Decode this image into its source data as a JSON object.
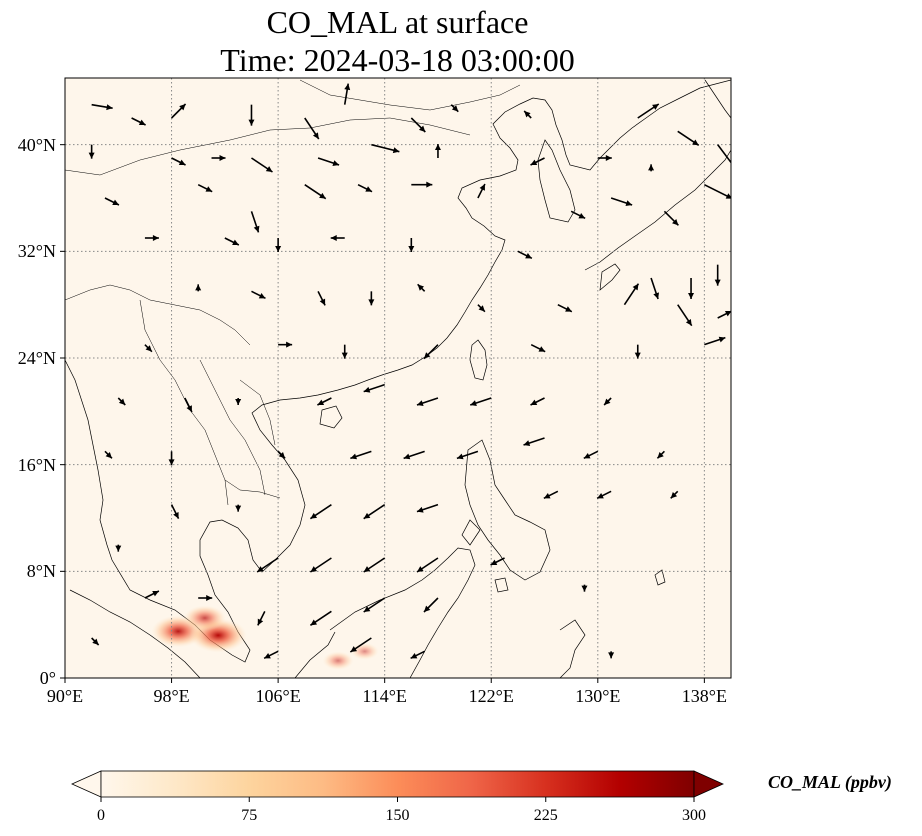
{
  "title_line1": "CO_MAL at surface",
  "title_line2": "Time: 2024-03-18 03:00:00",
  "map": {
    "lon_range": [
      90,
      140
    ],
    "lat_range": [
      0,
      45
    ],
    "lat_ticks": [
      {
        "value": 0,
        "label": "0°"
      },
      {
        "value": 8,
        "label": "8°N"
      },
      {
        "value": 16,
        "label": "16°N"
      },
      {
        "value": 24,
        "label": "24°N"
      },
      {
        "value": 32,
        "label": "32°N"
      },
      {
        "value": 40,
        "label": "40°N"
      }
    ],
    "lon_ticks": [
      {
        "value": 90,
        "label": "90°E"
      },
      {
        "value": 98,
        "label": "98°E"
      },
      {
        "value": 106,
        "label": "106°E"
      },
      {
        "value": 114,
        "label": "114°E"
      },
      {
        "value": 122,
        "label": "122°E"
      },
      {
        "value": 130,
        "label": "130°E"
      },
      {
        "value": 138,
        "label": "138°E"
      }
    ],
    "background_color": "#fef6eb",
    "gridlines": "dotted"
  },
  "colorbar": {
    "label": "CO_MAL (ppbv)",
    "colormap": "OrRd",
    "range": [
      0,
      300
    ],
    "extend": "both",
    "ticks": [
      {
        "value": 0,
        "label": "0"
      },
      {
        "value": 75,
        "label": "75"
      },
      {
        "value": 150,
        "label": "150"
      },
      {
        "value": 225,
        "label": "225"
      },
      {
        "value": 300,
        "label": "300"
      }
    ],
    "stops": [
      "#fff7ec",
      "#fee8c8",
      "#fdd49e",
      "#fdbb84",
      "#fc8d59",
      "#ef6548",
      "#d7301f",
      "#b30000",
      "#7f0000"
    ]
  },
  "hotspots": [
    {
      "lon": 98.5,
      "lat": 3.5,
      "value": 180
    },
    {
      "lon": 101.5,
      "lat": 3.2,
      "value": 200
    },
    {
      "lon": 100.5,
      "lat": 4.5,
      "value": 120
    },
    {
      "lon": 110.5,
      "lat": 1.3,
      "value": 60
    },
    {
      "lon": 112.5,
      "lat": 2.0,
      "value": 45
    }
  ],
  "wind_arrows": [
    {
      "lon": 92,
      "lat": 43,
      "u": 3,
      "v": -0.5
    },
    {
      "lon": 95,
      "lat": 42,
      "u": 2,
      "v": -1
    },
    {
      "lon": 98,
      "lat": 42,
      "u": 2,
      "v": 2
    },
    {
      "lon": 104,
      "lat": 43,
      "u": 0,
      "v": -3
    },
    {
      "lon": 108,
      "lat": 42,
      "u": 2,
      "v": -3
    },
    {
      "lon": 111,
      "lat": 43,
      "u": 0.5,
      "v": 3
    },
    {
      "lon": 116,
      "lat": 42,
      "u": 2,
      "v": -2
    },
    {
      "lon": 119,
      "lat": 43,
      "u": 1,
      "v": -1
    },
    {
      "lon": 125,
      "lat": 42,
      "u": -1,
      "v": 1
    },
    {
      "lon": 133,
      "lat": 42,
      "u": 3,
      "v": 2
    },
    {
      "lon": 136,
      "lat": 41,
      "u": 3,
      "v": -2
    },
    {
      "lon": 139,
      "lat": 40,
      "u": 3,
      "v": -4
    },
    {
      "lon": 92,
      "lat": 40,
      "u": 0,
      "v": -2
    },
    {
      "lon": 98,
      "lat": 39,
      "u": 2,
      "v": -1
    },
    {
      "lon": 101,
      "lat": 39,
      "u": 2,
      "v": 0
    },
    {
      "lon": 104,
      "lat": 39,
      "u": 3,
      "v": -2
    },
    {
      "lon": 109,
      "lat": 39,
      "u": 3,
      "v": -1
    },
    {
      "lon": 113,
      "lat": 40,
      "u": 4,
      "v": -1
    },
    {
      "lon": 118,
      "lat": 39,
      "u": 0,
      "v": 2
    },
    {
      "lon": 126,
      "lat": 39,
      "u": -2,
      "v": -1
    },
    {
      "lon": 130,
      "lat": 39,
      "u": 2,
      "v": 0
    },
    {
      "lon": 134,
      "lat": 38,
      "u": 0,
      "v": 1
    },
    {
      "lon": 138,
      "lat": 37,
      "u": 4,
      "v": -2
    },
    {
      "lon": 93,
      "lat": 36,
      "u": 2,
      "v": -1
    },
    {
      "lon": 100,
      "lat": 37,
      "u": 2,
      "v": -1
    },
    {
      "lon": 104,
      "lat": 35,
      "u": 1,
      "v": -3
    },
    {
      "lon": 108,
      "lat": 37,
      "u": 3,
      "v": -2
    },
    {
      "lon": 112,
      "lat": 37,
      "u": 2,
      "v": -1
    },
    {
      "lon": 116,
      "lat": 37,
      "u": 3,
      "v": 0
    },
    {
      "lon": 121,
      "lat": 36,
      "u": 1,
      "v": 2
    },
    {
      "lon": 128,
      "lat": 35,
      "u": 2,
      "v": -1
    },
    {
      "lon": 131,
      "lat": 36,
      "u": 3,
      "v": -1
    },
    {
      "lon": 135,
      "lat": 35,
      "u": 2,
      "v": -2
    },
    {
      "lon": 96,
      "lat": 33,
      "u": 2,
      "v": 0
    },
    {
      "lon": 102,
      "lat": 33,
      "u": 2,
      "v": -1
    },
    {
      "lon": 106,
      "lat": 33,
      "u": 0,
      "v": -2
    },
    {
      "lon": 111,
      "lat": 33,
      "u": -2,
      "v": 0
    },
    {
      "lon": 116,
      "lat": 33,
      "u": 0,
      "v": -2
    },
    {
      "lon": 124,
      "lat": 32,
      "u": 2,
      "v": -1
    },
    {
      "lon": 134,
      "lat": 30,
      "u": 1,
      "v": -3
    },
    {
      "lon": 137,
      "lat": 30,
      "u": 0,
      "v": -3
    },
    {
      "lon": 139,
      "lat": 31,
      "u": 0,
      "v": -3
    },
    {
      "lon": 100,
      "lat": 29,
      "u": 0,
      "v": 1
    },
    {
      "lon": 104,
      "lat": 29,
      "u": 2,
      "v": -1
    },
    {
      "lon": 109,
      "lat": 29,
      "u": 1,
      "v": -2
    },
    {
      "lon": 113,
      "lat": 29,
      "u": 0,
      "v": -2
    },
    {
      "lon": 117,
      "lat": 29,
      "u": -1,
      "v": 1
    },
    {
      "lon": 121,
      "lat": 28,
      "u": 1,
      "v": -1
    },
    {
      "lon": 127,
      "lat": 28,
      "u": 2,
      "v": -1
    },
    {
      "lon": 132,
      "lat": 28,
      "u": 2,
      "v": 3
    },
    {
      "lon": 136,
      "lat": 28,
      "u": 2,
      "v": -3
    },
    {
      "lon": 139,
      "lat": 27,
      "u": 2,
      "v": 1
    },
    {
      "lon": 96,
      "lat": 25,
      "u": 1,
      "v": -1
    },
    {
      "lon": 106,
      "lat": 25,
      "u": 2,
      "v": 0
    },
    {
      "lon": 111,
      "lat": 25,
      "u": 0,
      "v": -2
    },
    {
      "lon": 118,
      "lat": 25,
      "u": -2,
      "v": -2
    },
    {
      "lon": 125,
      "lat": 25,
      "u": 2,
      "v": -1
    },
    {
      "lon": 133,
      "lat": 25,
      "u": 0,
      "v": -2
    },
    {
      "lon": 138,
      "lat": 25,
      "u": 3,
      "v": 1
    },
    {
      "lon": 94,
      "lat": 21,
      "u": 1,
      "v": -1
    },
    {
      "lon": 99,
      "lat": 21,
      "u": 1,
      "v": -2
    },
    {
      "lon": 103,
      "lat": 21,
      "u": 0,
      "v": -1
    },
    {
      "lon": 110,
      "lat": 21,
      "u": -2,
      "v": -1
    },
    {
      "lon": 114,
      "lat": 22,
      "u": -3,
      "v": -1
    },
    {
      "lon": 118,
      "lat": 21,
      "u": -3,
      "v": -1
    },
    {
      "lon": 122,
      "lat": 21,
      "u": -3,
      "v": -1
    },
    {
      "lon": 126,
      "lat": 21,
      "u": -2,
      "v": -1
    },
    {
      "lon": 131,
      "lat": 21,
      "u": -1,
      "v": -1
    },
    {
      "lon": 93,
      "lat": 17,
      "u": 1,
      "v": -1
    },
    {
      "lon": 98,
      "lat": 17,
      "u": 0,
      "v": -2
    },
    {
      "lon": 106,
      "lat": 17,
      "u": 1,
      "v": -1
    },
    {
      "lon": 113,
      "lat": 17,
      "u": -3,
      "v": -1
    },
    {
      "lon": 117,
      "lat": 17,
      "u": -3,
      "v": -1
    },
    {
      "lon": 121,
      "lat": 17,
      "u": -3,
      "v": -1
    },
    {
      "lon": 126,
      "lat": 18,
      "u": -3,
      "v": -1
    },
    {
      "lon": 130,
      "lat": 17,
      "u": -2,
      "v": -1
    },
    {
      "lon": 135,
      "lat": 17,
      "u": -1,
      "v": -1
    },
    {
      "lon": 98,
      "lat": 13,
      "u": 1,
      "v": -2
    },
    {
      "lon": 103,
      "lat": 13,
      "u": 0,
      "v": -1
    },
    {
      "lon": 110,
      "lat": 13,
      "u": -3,
      "v": -2
    },
    {
      "lon": 114,
      "lat": 13,
      "u": -3,
      "v": -2
    },
    {
      "lon": 118,
      "lat": 13,
      "u": -3,
      "v": -1
    },
    {
      "lon": 127,
      "lat": 14,
      "u": -2,
      "v": -1
    },
    {
      "lon": 131,
      "lat": 14,
      "u": -2,
      "v": -1
    },
    {
      "lon": 136,
      "lat": 14,
      "u": -1,
      "v": -1
    },
    {
      "lon": 94,
      "lat": 10,
      "u": 0,
      "v": -1
    },
    {
      "lon": 106,
      "lat": 9,
      "u": -3,
      "v": -2
    },
    {
      "lon": 110,
      "lat": 9,
      "u": -3,
      "v": -2
    },
    {
      "lon": 114,
      "lat": 9,
      "u": -3,
      "v": -2
    },
    {
      "lon": 118,
      "lat": 9,
      "u": -3,
      "v": -2
    },
    {
      "lon": 123,
      "lat": 9,
      "u": -2,
      "v": -1
    },
    {
      "lon": 129,
      "lat": 7,
      "u": 0,
      "v": -1
    },
    {
      "lon": 96,
      "lat": 6,
      "u": 2,
      "v": 1
    },
    {
      "lon": 100,
      "lat": 6,
      "u": 2,
      "v": 0
    },
    {
      "lon": 105,
      "lat": 5,
      "u": -1,
      "v": -2
    },
    {
      "lon": 110,
      "lat": 5,
      "u": -3,
      "v": -2
    },
    {
      "lon": 114,
      "lat": 6,
      "u": -3,
      "v": -2
    },
    {
      "lon": 118,
      "lat": 6,
      "u": -2,
      "v": -2
    },
    {
      "lon": 92,
      "lat": 3,
      "u": 1,
      "v": -1
    },
    {
      "lon": 106,
      "lat": 2,
      "u": -2,
      "v": -1
    },
    {
      "lon": 113,
      "lat": 3,
      "u": -3,
      "v": -2
    },
    {
      "lon": 117,
      "lat": 2,
      "u": -2,
      "v": -1
    },
    {
      "lon": 131,
      "lat": 2,
      "u": 0,
      "v": -1
    }
  ]
}
